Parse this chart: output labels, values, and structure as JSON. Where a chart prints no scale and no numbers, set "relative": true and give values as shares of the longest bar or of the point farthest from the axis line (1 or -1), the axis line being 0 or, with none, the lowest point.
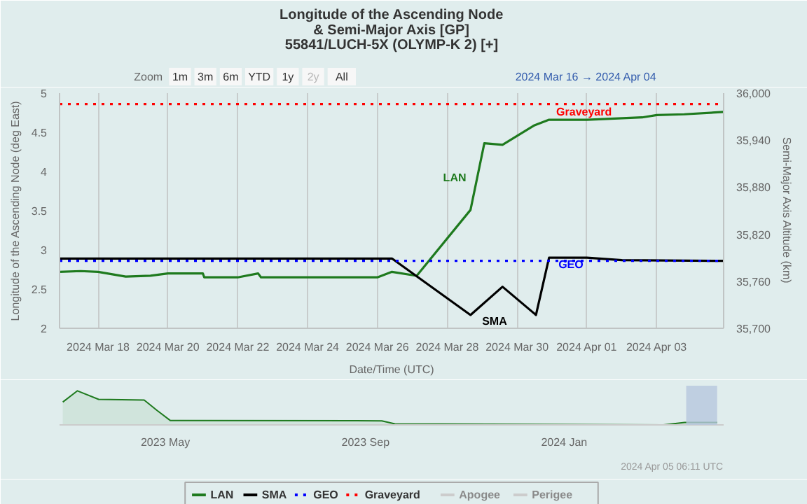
{
  "chart_data": [
    {
      "type": "line",
      "title": "Longitude of the Ascending Node\n& Semi-Major Axis [GP]",
      "subtitle": "55841/LUCH-5X (OLYMP-K 2) [+]",
      "xlabel": "Date/Time (UTC)",
      "ylabel": "Longitude of the Ascending Node (deg East)",
      "y2label": "Semi-Major Axis Altitude (km)",
      "xlim": [
        "2024-03-16T21:30",
        "2024-04-04T22:00"
      ],
      "xticks": [
        {
          "value": "2024-03-18",
          "label": "2024 Mar 18"
        },
        {
          "value": "2024-03-20",
          "label": "2024 Mar 20"
        },
        {
          "value": "2024-03-22",
          "label": "2024 Mar 22"
        },
        {
          "value": "2024-03-24",
          "label": "2024 Mar 24"
        },
        {
          "value": "2024-03-26",
          "label": "2024 Mar 26"
        },
        {
          "value": "2024-03-28",
          "label": "2024 Mar 28"
        },
        {
          "value": "2024-03-30",
          "label": "2024 Mar 30"
        },
        {
          "value": "2024-04-01",
          "label": "2024 Apr 01"
        },
        {
          "value": "2024-04-03",
          "label": "2024 Apr 03"
        }
      ],
      "ylim": [
        2,
        5
      ],
      "yticks": [
        2,
        2.5,
        3,
        3.5,
        4,
        4.5,
        5
      ],
      "y2lim": [
        35700,
        36000
      ],
      "y2ticks": [
        {
          "value": 35700,
          "label": "35,700"
        },
        {
          "value": 35760,
          "label": "35,760"
        },
        {
          "value": 35820,
          "label": "35,820"
        },
        {
          "value": 35880,
          "label": "35,880"
        },
        {
          "value": 35940,
          "label": "35,940"
        },
        {
          "value": 36000,
          "label": "36,000"
        }
      ],
      "grid": "x",
      "legend": "bottom",
      "marker": "none",
      "series": [
        {
          "name": "LAN",
          "color": "#1e7a1e",
          "x": [
            "2024-03-16T21:30",
            "2024-03-17T12:00",
            "2024-03-18T00:00",
            "2024-03-18T19:00",
            "2024-03-19T12:00",
            "2024-03-20T00:00",
            "2024-03-21T00:00",
            "2024-03-21T01:00",
            "2024-03-22T00:00",
            "2024-03-22T14:00",
            "2024-03-22T16:00",
            "2024-03-26T00:00",
            "2024-03-26T10:00",
            "2024-03-27T03:00",
            "2024-03-28T16:00",
            "2024-03-29T01:30",
            "2024-03-29T14:00",
            "2024-03-30T12:00",
            "2024-03-30T22:00",
            "2024-04-01T00:00",
            "2024-04-02T14:00",
            "2024-04-03T00:00",
            "2024-04-03T19:00",
            "2024-04-04T22:00"
          ],
          "values": [
            2.72,
            2.73,
            2.72,
            2.66,
            2.67,
            2.7,
            2.7,
            2.65,
            2.65,
            2.7,
            2.65,
            2.65,
            2.72,
            2.67,
            3.51,
            4.36,
            4.34,
            4.59,
            4.66,
            4.66,
            4.69,
            4.72,
            4.73,
            4.76
          ]
        },
        {
          "name": "SMA",
          "color": "#000000",
          "axis": "y2",
          "x": [
            "2024-03-16T21:30",
            "2024-03-26T10:00",
            "2024-03-28T16:00",
            "2024-03-29T14:00",
            "2024-03-30T13:00",
            "2024-03-30T22:00",
            "2024-04-01T00:00",
            "2024-04-02T00:00",
            "2024-04-04T22:00"
          ],
          "values": [
            35789,
            35789,
            35717,
            35753,
            35717,
            35790,
            35790,
            35787,
            35786
          ]
        },
        {
          "name": "GEO",
          "color": "#0000ff",
          "axis": "y2",
          "line_style": "dotted",
          "x": [
            "2024-03-16T21:30",
            "2024-04-04T22:00"
          ],
          "values": [
            35786,
            35786
          ]
        },
        {
          "name": "Graveyard",
          "color": "#ff0000",
          "axis": "y2",
          "line_style": "dotted",
          "x": [
            "2024-03-16T21:30",
            "2024-04-04T22:00"
          ],
          "values": [
            35986,
            35986
          ]
        },
        {
          "name": "Apogee",
          "color": "#cccccc",
          "axis": "y2"
        },
        {
          "name": "Perigee",
          "color": "#cccccc",
          "axis": "y2"
        }
      ],
      "annotations": [
        "LAN",
        "SMA",
        "GEO",
        {
          "text": "Graveyard",
          "x": "2024-03-31T22:00",
          "y": 4.76
        },
        "Zoom",
        "1m",
        "3m",
        "6m",
        "YTD",
        "1y",
        "2y",
        "All",
        "2024 Mar 16 → 2024 Apr 04",
        "2024 Apr 05 06:11 UTC"
      ]
    },
    {
      "type": "area",
      "relative": true,
      "tick_labels": "x",
      "grid": false,
      "xlim": [
        "2023-02-25",
        "2024-04-08"
      ],
      "xticks": [
        {
          "value": "2023-05-01",
          "label": "2023 May"
        },
        {
          "value": "2023-09-01",
          "label": "2023 Sep"
        },
        {
          "value": "2024-01-01",
          "label": "2024 Jan"
        }
      ],
      "bands": [
        {
          "axis": "x",
          "from": "2024-03-16",
          "to": "2024-04-04",
          "color": "#b7c7dd"
        }
      ],
      "series": [
        {
          "color": "#1e7a1e",
          "x": [
            "2023-02-27",
            "2023-03-08",
            "2023-03-21",
            "2023-04-18",
            "2023-04-26",
            "2023-05-04",
            "2023-09-11",
            "2023-09-19",
            "2024-03-02",
            "2024-03-15",
            "2024-04-04"
          ],
          "values": [
            0.67,
            1,
            0.75,
            0.73,
            0.42,
            0.13,
            0.12,
            0.03,
            0,
            0.07,
            0.07
          ]
        }
      ]
    }
  ]
}
